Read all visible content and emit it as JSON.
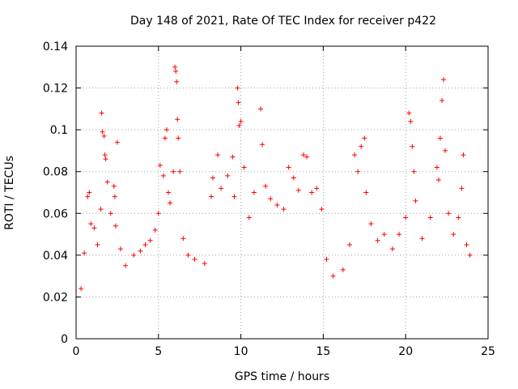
{
  "chart_data": {
    "type": "scatter",
    "title": "Day 148 of 2021, Rate Of TEC Index for receiver p422",
    "xlabel": "GPS time / hours",
    "ylabel": "ROTI / TECUs",
    "xlim": [
      0,
      25
    ],
    "ylim": [
      0,
      0.14
    ],
    "x_ticks": [
      0,
      5,
      10,
      15,
      20,
      25
    ],
    "y_ticks": [
      0,
      0.02,
      0.04,
      0.06,
      0.08,
      0.1,
      0.12,
      0.14
    ],
    "x_tick_labels": [
      "0",
      "5",
      "10",
      "15",
      "20",
      "25"
    ],
    "y_tick_labels": [
      "0",
      "0.02",
      "0.04",
      "0.06",
      "0.08",
      "0.1",
      "0.12",
      "0.14"
    ],
    "grid": true,
    "marker": "+",
    "color": "#ff0000",
    "series": [
      {
        "name": "ROTI",
        "points": [
          [
            0.3,
            0.024
          ],
          [
            0.5,
            0.041
          ],
          [
            0.7,
            0.068
          ],
          [
            0.8,
            0.07
          ],
          [
            0.9,
            0.055
          ],
          [
            1.1,
            0.053
          ],
          [
            1.3,
            0.045
          ],
          [
            1.5,
            0.062
          ],
          [
            1.55,
            0.108
          ],
          [
            1.6,
            0.099
          ],
          [
            1.7,
            0.097
          ],
          [
            1.75,
            0.088
          ],
          [
            1.8,
            0.086
          ],
          [
            1.9,
            0.075
          ],
          [
            2.1,
            0.06
          ],
          [
            2.3,
            0.073
          ],
          [
            2.35,
            0.068
          ],
          [
            2.4,
            0.054
          ],
          [
            2.5,
            0.094
          ],
          [
            2.7,
            0.043
          ],
          [
            3.0,
            0.035
          ],
          [
            3.5,
            0.04
          ],
          [
            3.9,
            0.042
          ],
          [
            4.2,
            0.045
          ],
          [
            4.5,
            0.047
          ],
          [
            4.8,
            0.052
          ],
          [
            5.0,
            0.06
          ],
          [
            5.1,
            0.083
          ],
          [
            5.3,
            0.078
          ],
          [
            5.4,
            0.096
          ],
          [
            5.5,
            0.1
          ],
          [
            5.6,
            0.07
          ],
          [
            5.7,
            0.065
          ],
          [
            5.9,
            0.08
          ],
          [
            6.0,
            0.13
          ],
          [
            6.05,
            0.128
          ],
          [
            6.1,
            0.123
          ],
          [
            6.15,
            0.105
          ],
          [
            6.2,
            0.096
          ],
          [
            6.3,
            0.08
          ],
          [
            6.5,
            0.048
          ],
          [
            6.8,
            0.04
          ],
          [
            7.2,
            0.038
          ],
          [
            7.8,
            0.036
          ],
          [
            8.2,
            0.068
          ],
          [
            8.3,
            0.077
          ],
          [
            8.6,
            0.088
          ],
          [
            8.8,
            0.072
          ],
          [
            9.2,
            0.078
          ],
          [
            9.5,
            0.087
          ],
          [
            9.6,
            0.068
          ],
          [
            9.8,
            0.12
          ],
          [
            9.85,
            0.113
          ],
          [
            9.9,
            0.102
          ],
          [
            10.0,
            0.104
          ],
          [
            10.2,
            0.082
          ],
          [
            10.5,
            0.058
          ],
          [
            10.8,
            0.07
          ],
          [
            11.2,
            0.11
          ],
          [
            11.3,
            0.093
          ],
          [
            11.5,
            0.073
          ],
          [
            11.8,
            0.067
          ],
          [
            12.2,
            0.064
          ],
          [
            12.6,
            0.062
          ],
          [
            12.9,
            0.082
          ],
          [
            13.2,
            0.077
          ],
          [
            13.5,
            0.071
          ],
          [
            13.8,
            0.088
          ],
          [
            14.0,
            0.087
          ],
          [
            14.3,
            0.07
          ],
          [
            14.6,
            0.072
          ],
          [
            14.9,
            0.062
          ],
          [
            15.2,
            0.038
          ],
          [
            15.6,
            0.03
          ],
          [
            16.2,
            0.033
          ],
          [
            16.6,
            0.045
          ],
          [
            16.9,
            0.088
          ],
          [
            17.1,
            0.08
          ],
          [
            17.3,
            0.092
          ],
          [
            17.5,
            0.096
          ],
          [
            17.6,
            0.07
          ],
          [
            17.9,
            0.055
          ],
          [
            18.3,
            0.047
          ],
          [
            18.7,
            0.05
          ],
          [
            19.2,
            0.043
          ],
          [
            19.6,
            0.05
          ],
          [
            20.0,
            0.058
          ],
          [
            20.2,
            0.108
          ],
          [
            20.3,
            0.104
          ],
          [
            20.4,
            0.092
          ],
          [
            20.5,
            0.08
          ],
          [
            20.6,
            0.066
          ],
          [
            21.0,
            0.048
          ],
          [
            21.5,
            0.058
          ],
          [
            21.9,
            0.082
          ],
          [
            22.0,
            0.076
          ],
          [
            22.1,
            0.096
          ],
          [
            22.2,
            0.114
          ],
          [
            22.3,
            0.124
          ],
          [
            22.4,
            0.09
          ],
          [
            22.6,
            0.06
          ],
          [
            22.9,
            0.05
          ],
          [
            23.2,
            0.058
          ],
          [
            23.4,
            0.072
          ],
          [
            23.5,
            0.088
          ],
          [
            23.7,
            0.045
          ],
          [
            23.9,
            0.04
          ]
        ]
      }
    ]
  }
}
